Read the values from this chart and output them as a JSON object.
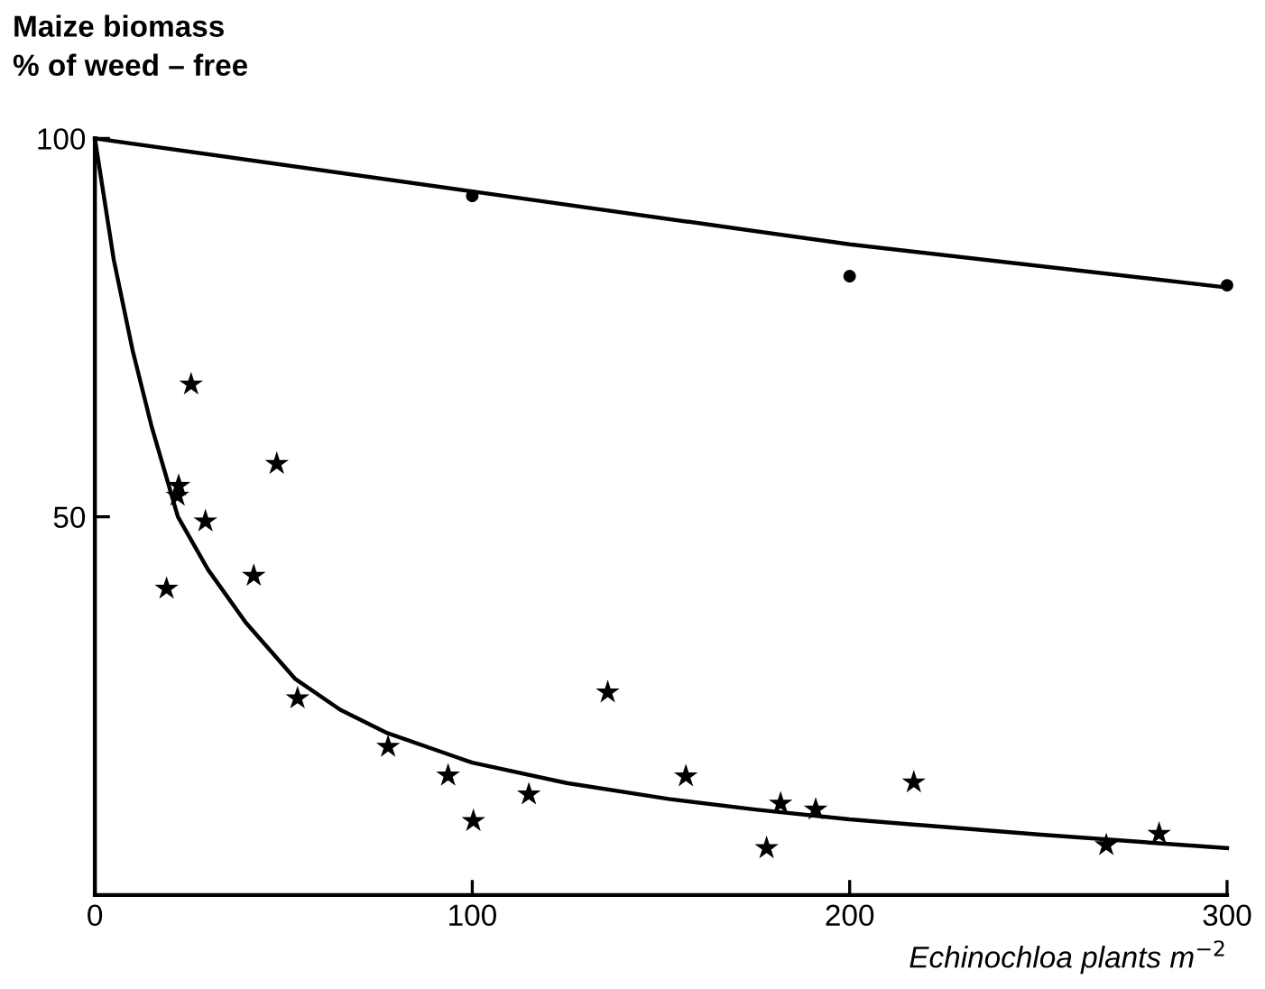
{
  "chart_data": {
    "type": "scatter",
    "ylabel": "Maize biomass\n% of weed – free",
    "xlabel": "Echinochloa plants m$^{−2}$",
    "xlim": [
      0,
      300
    ],
    "ylim": [
      0,
      100
    ],
    "xticks": [
      0,
      100,
      200,
      300
    ],
    "yticks": [
      {
        "value": 0,
        "label": null
      },
      50,
      100
    ],
    "grid": false,
    "legend": false,
    "series": [
      {
        "marker": "circle",
        "color": "#000000",
        "x": [
          100,
          200,
          300
        ],
        "values": [
          92.4,
          81.8,
          80.6
        ]
      },
      {
        "type": "line",
        "marker": "none",
        "color": "#000000",
        "x": [
          0,
          100,
          200,
          300
        ],
        "values": [
          100,
          93,
          86,
          80.3
        ]
      },
      {
        "marker": "star",
        "color": "#000000",
        "x": [
          25.5,
          48.2,
          22.2,
          21.9,
          29.3,
          19,
          42.1,
          53.7,
          77.7,
          93.6,
          100.3,
          115,
          135.9,
          156.6,
          178,
          181.7,
          191,
          217,
          268,
          282
        ],
        "values": [
          67.5,
          57,
          54.1,
          52.8,
          49.4,
          40.5,
          42.2,
          26,
          19.6,
          15.8,
          9.8,
          13.3,
          26.8,
          15.7,
          6.2,
          12.1,
          11.3,
          14.9,
          6.6,
          8.1
        ]
      },
      {
        "type": "line",
        "marker": "none",
        "color": "#000000",
        "x": [
          0,
          5,
          10,
          15,
          22,
          30,
          40,
          53,
          65,
          77.5,
          100,
          125,
          152,
          175,
          200,
          250,
          300
        ],
        "values": [
          100,
          84,
          72,
          62,
          50,
          43,
          36,
          28.6,
          24.5,
          21.4,
          17.5,
          14.8,
          12.7,
          11.3,
          10,
          8,
          6.2
        ]
      }
    ]
  }
}
